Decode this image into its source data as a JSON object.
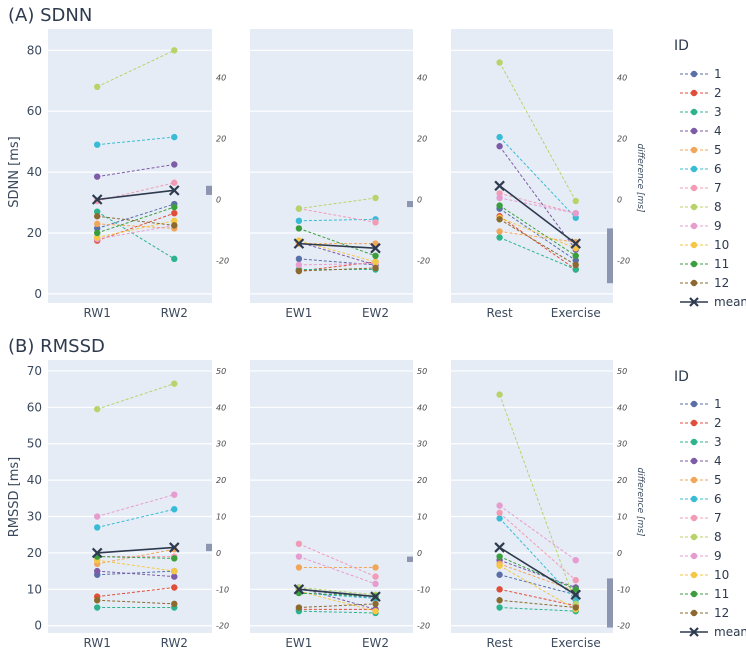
{
  "colors": [
    "#5a6ea8",
    "#e04e39",
    "#2cb38c",
    "#7d5ba6",
    "#f2a65a",
    "#38bcd6",
    "#f39bb5",
    "#b8d36a",
    "#e79ccf",
    "#f6c744",
    "#3a9e3c",
    "#8c6a2f"
  ],
  "mean_color": "#2e3a4e",
  "legend": {
    "title": "ID",
    "ids": [
      "1",
      "2",
      "3",
      "4",
      "5",
      "6",
      "7",
      "8",
      "9",
      "10",
      "11",
      "12"
    ],
    "mean_label": "mean"
  },
  "chart_data": [
    {
      "section_title": "(A) SDNN",
      "type": "line",
      "ylabel": "SDNN [ms]",
      "right_label": "difference [ms]",
      "ylim": [
        -3,
        87
      ],
      "yticks": [
        0,
        20,
        40,
        60,
        80
      ],
      "right_offset": 31,
      "right_ticks": [
        -20,
        0,
        20,
        40
      ],
      "panels": [
        {
          "categories": [
            "RW1",
            "RW2"
          ],
          "series": [
            {
              "id": "1",
              "values": [
                21.5,
                29.5
              ]
            },
            {
              "id": "2",
              "values": [
                17.5,
                26.5
              ]
            },
            {
              "id": "3",
              "values": [
                27.0,
                11.5
              ]
            },
            {
              "id": "4",
              "values": [
                38.5,
                42.5
              ]
            },
            {
              "id": "5",
              "values": [
                23.0,
                21.5
              ]
            },
            {
              "id": "6",
              "values": [
                49.0,
                51.5
              ]
            },
            {
              "id": "7",
              "values": [
                30.5,
                36.5
              ]
            },
            {
              "id": "8",
              "values": [
                68.0,
                80.0
              ]
            },
            {
              "id": "9",
              "values": [
                18.0,
                22.5
              ]
            },
            {
              "id": "10",
              "values": [
                18.5,
                24.0
              ]
            },
            {
              "id": "11",
              "values": [
                20.0,
                28.5
              ]
            },
            {
              "id": "12",
              "values": [
                25.5,
                22.5
              ]
            }
          ],
          "mean": [
            31.0,
            34.0
          ],
          "diff_bar": [
            1.5,
            4.5
          ]
        },
        {
          "categories": [
            "EW1",
            "EW2"
          ],
          "series": [
            {
              "id": "1",
              "values": [
                11.5,
                9.5
              ]
            },
            {
              "id": "2",
              "values": [
                7.5,
                10.5
              ]
            },
            {
              "id": "3",
              "values": [
                8.0,
                8.0
              ]
            },
            {
              "id": "4",
              "values": [
                17.0,
                9.5
              ]
            },
            {
              "id": "5",
              "values": [
                16.5,
                16.5
              ]
            },
            {
              "id": "6",
              "values": [
                24.0,
                24.5
              ]
            },
            {
              "id": "7",
              "values": [
                28.0,
                23.5
              ]
            },
            {
              "id": "8",
              "values": [
                28.0,
                31.5
              ]
            },
            {
              "id": "9",
              "values": [
                9.5,
                10.0
              ]
            },
            {
              "id": "10",
              "values": [
                17.5,
                10.5
              ]
            },
            {
              "id": "11",
              "values": [
                21.5,
                12.5
              ]
            },
            {
              "id": "12",
              "values": [
                7.5,
                8.5
              ]
            }
          ],
          "mean": [
            16.5,
            15.0
          ],
          "diff_bar": [
            -2.5,
            -0.5
          ]
        },
        {
          "categories": [
            "Rest",
            "Exercise"
          ],
          "series": [
            {
              "id": "1",
              "values": [
                28.0,
                11.0
              ]
            },
            {
              "id": "2",
              "values": [
                25.5,
                8.0
              ]
            },
            {
              "id": "3",
              "values": [
                18.5,
                8.0
              ]
            },
            {
              "id": "4",
              "values": [
                48.5,
                14.5
              ]
            },
            {
              "id": "5",
              "values": [
                20.5,
                17.0
              ]
            },
            {
              "id": "6",
              "values": [
                51.5,
                25.0
              ]
            },
            {
              "id": "7",
              "values": [
                33.0,
                26.5
              ]
            },
            {
              "id": "8",
              "values": [
                76.0,
                30.5
              ]
            },
            {
              "id": "9",
              "values": [
                31.5,
                26.5
              ]
            },
            {
              "id": "10",
              "values": [
                25.0,
                15.0
              ]
            },
            {
              "id": "11",
              "values": [
                29.0,
                12.5
              ]
            },
            {
              "id": "12",
              "values": [
                24.5,
                9.5
              ]
            }
          ],
          "mean": [
            35.5,
            16.5
          ],
          "diff_bar": [
            -27.5,
            -9.5
          ]
        }
      ]
    },
    {
      "section_title": "(B) RMSSD",
      "type": "line",
      "ylabel": "RMSSD [ms]",
      "right_label": "difference [ms]",
      "ylim": [
        -2,
        73
      ],
      "yticks": [
        0,
        10,
        20,
        30,
        40,
        50,
        60,
        70
      ],
      "right_offset": 20,
      "right_ticks": [
        -20,
        -10,
        0,
        10,
        20,
        30,
        40,
        50
      ],
      "panels": [
        {
          "categories": [
            "RW1",
            "RW2"
          ],
          "series": [
            {
              "id": "1",
              "values": [
                14.0,
                15.0
              ]
            },
            {
              "id": "2",
              "values": [
                8.0,
                10.5
              ]
            },
            {
              "id": "3",
              "values": [
                5.0,
                5.0
              ]
            },
            {
              "id": "4",
              "values": [
                15.0,
                13.5
              ]
            },
            {
              "id": "5",
              "values": [
                17.0,
                21.0
              ]
            },
            {
              "id": "6",
              "values": [
                27.0,
                32.0
              ]
            },
            {
              "id": "7",
              "values": [
                19.0,
                19.0
              ]
            },
            {
              "id": "8",
              "values": [
                59.5,
                66.5
              ]
            },
            {
              "id": "9",
              "values": [
                30.0,
                36.0
              ]
            },
            {
              "id": "10",
              "values": [
                18.0,
                15.0
              ]
            },
            {
              "id": "11",
              "values": [
                19.0,
                18.5
              ]
            },
            {
              "id": "12",
              "values": [
                7.0,
                6.0
              ]
            }
          ],
          "mean": [
            20.0,
            21.5
          ],
          "diff_bar": [
            0.5,
            2.5
          ]
        },
        {
          "categories": [
            "EW1",
            "EW2"
          ],
          "series": [
            {
              "id": "1",
              "values": [
                10.0,
                7.5
              ]
            },
            {
              "id": "2",
              "values": [
                4.5,
                4.5
              ]
            },
            {
              "id": "3",
              "values": [
                4.0,
                3.5
              ]
            },
            {
              "id": "4",
              "values": [
                10.5,
                4.5
              ]
            },
            {
              "id": "5",
              "values": [
                16.0,
                16.0
              ]
            },
            {
              "id": "6",
              "values": [
                9.0,
                7.5
              ]
            },
            {
              "id": "7",
              "values": [
                22.5,
                13.5
              ]
            },
            {
              "id": "8",
              "values": [
                10.5,
                8.5
              ]
            },
            {
              "id": "9",
              "values": [
                19.0,
                11.5
              ]
            },
            {
              "id": "10",
              "values": [
                9.5,
                4.0
              ]
            },
            {
              "id": "11",
              "values": [
                9.0,
                8.0
              ]
            },
            {
              "id": "12",
              "values": [
                5.0,
                6.0
              ]
            }
          ],
          "mean": [
            10.0,
            8.0
          ],
          "diff_bar": [
            -2.5,
            -1.0
          ]
        },
        {
          "categories": [
            "Rest",
            "Exercise"
          ],
          "series": [
            {
              "id": "1",
              "values": [
                14.0,
                8.5
              ]
            },
            {
              "id": "2",
              "values": [
                10.0,
                5.5
              ]
            },
            {
              "id": "3",
              "values": [
                5.0,
                4.0
              ]
            },
            {
              "id": "4",
              "values": [
                18.0,
                10.5
              ]
            },
            {
              "id": "5",
              "values": [
                17.0,
                9.5
              ]
            },
            {
              "id": "6",
              "values": [
                29.5,
                7.0
              ]
            },
            {
              "id": "7",
              "values": [
                31.0,
                12.5
              ]
            },
            {
              "id": "8",
              "values": [
                63.5,
                6.0
              ]
            },
            {
              "id": "9",
              "values": [
                33.0,
                18.0
              ]
            },
            {
              "id": "10",
              "values": [
                16.5,
                4.5
              ]
            },
            {
              "id": "11",
              "values": [
                19.0,
                10.0
              ]
            },
            {
              "id": "12",
              "values": [
                7.0,
                5.0
              ]
            }
          ],
          "mean": [
            21.5,
            8.5
          ],
          "diff_bar": [
            -20.5,
            -7.0
          ]
        }
      ]
    }
  ]
}
